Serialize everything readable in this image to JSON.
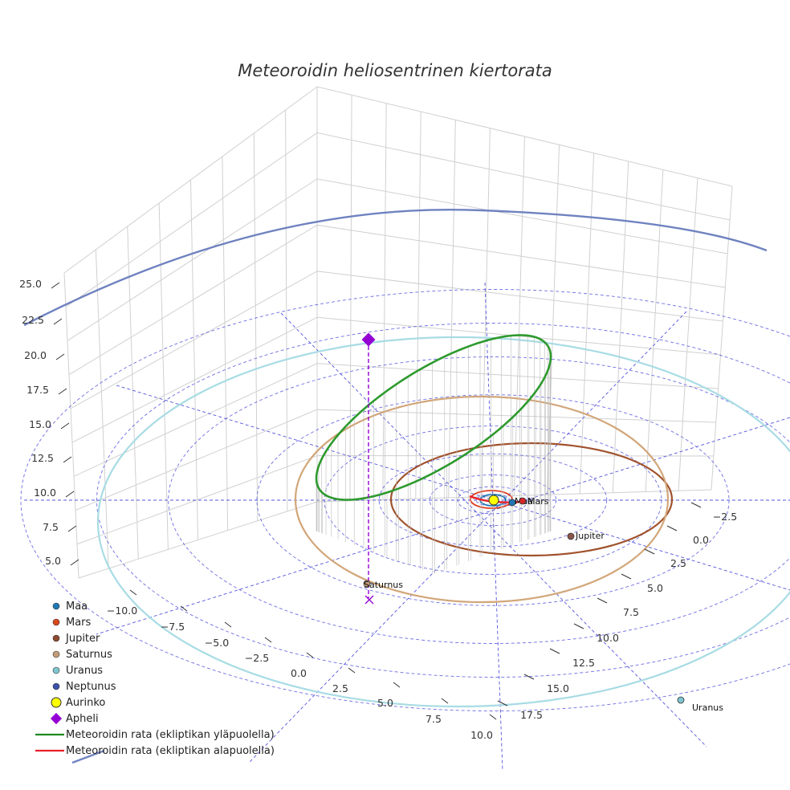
{
  "chart_data": {
    "type": "scatter",
    "title": "Meteoroidin heliosentrinen kiertorata",
    "projection": "3d",
    "grid": true,
    "legend_placement": "bottom-left",
    "axes": {
      "x": {
        "ticks": [
          "−10.0",
          "−7.5",
          "−5.0",
          "−2.5",
          "0.0",
          "2.5",
          "5.0",
          "7.5",
          "10.0"
        ]
      },
      "y": {
        "ticks": [
          "−2.5",
          "0.0",
          "2.5",
          "5.0",
          "7.5",
          "10.0",
          "12.5",
          "15.0",
          "17.5"
        ]
      },
      "z": {
        "ticks": [
          "5.0",
          "7.5",
          "10.0",
          "12.5",
          "15.0",
          "17.5",
          "20.0",
          "22.5",
          "25.0"
        ]
      }
    },
    "planets": [
      {
        "name": "Maa",
        "label": "Maa",
        "color": "#1f77b4"
      },
      {
        "name": "Mars",
        "label": "Mars",
        "color": "#d62728"
      },
      {
        "name": "Jupiter",
        "label": "Jupiter",
        "color": "#8c564b"
      },
      {
        "name": "Saturnus",
        "label": "Saturnus",
        "color": "#c49c78"
      },
      {
        "name": "Uranus",
        "label": "Uranus",
        "color": "#7fc6d0"
      },
      {
        "name": "Neptunus",
        "label": "Neptunus",
        "color": "#3b52a8"
      }
    ],
    "orbit_colors": {
      "Maa": "#1f77b4",
      "Mars": "#e03a1e",
      "Jupiter": "#a0522d",
      "Saturnus": "#d2a679",
      "Uranus": "#a8dce4",
      "Neptunus": "#6f82c0"
    },
    "sun": {
      "label": "Aurinko",
      "color": "#ffff00"
    },
    "aphelion": {
      "label": "Apheli",
      "color": "#9400d3"
    },
    "meteoroid_orbit": {
      "above_label": "Meteoroidin rata (ekliptikan yläpuolella)",
      "below_label": "Meteoroidin rata (ekliptikan alapuolella)",
      "above_color": "#2e9a2e",
      "below_color": "#e8202a"
    },
    "reference_grid_color": "#5555dd",
    "legend": [
      {
        "label": "Maa",
        "kind": "dot",
        "color": "#1f77b4"
      },
      {
        "label": "Mars",
        "kind": "dot",
        "color": "#d9471b"
      },
      {
        "label": "Jupiter",
        "kind": "dot",
        "color": "#8c4a2f"
      },
      {
        "label": "Saturnus",
        "kind": "dot",
        "color": "#c49c78"
      },
      {
        "label": "Uranus",
        "kind": "dot",
        "color": "#7fc6d0"
      },
      {
        "label": "Neptunus",
        "kind": "dot",
        "color": "#3b52a8"
      },
      {
        "label": "Aurinko",
        "kind": "sun",
        "color": "#ffff00"
      },
      {
        "label": "Apheli",
        "kind": "diamond",
        "color": "#9400d3"
      },
      {
        "label": "Meteoroidin rata (ekliptikan yläpuolella)",
        "kind": "line",
        "color": "#1f8a1f"
      },
      {
        "label": "Meteoroidin rata (ekliptikan alapuolella)",
        "kind": "line",
        "color": "#e8202a"
      }
    ]
  }
}
